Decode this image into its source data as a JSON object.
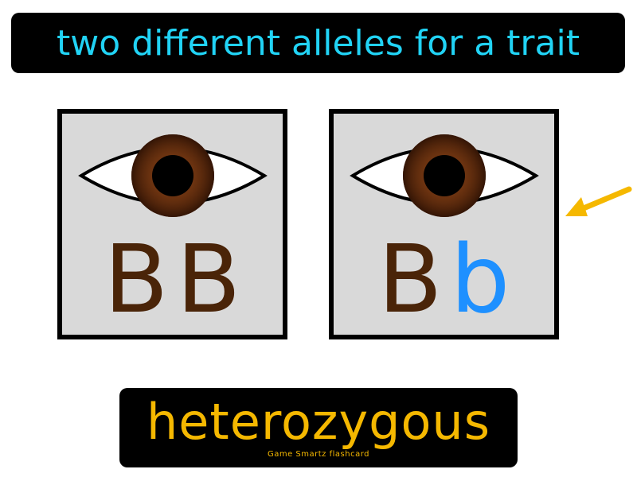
{
  "definition": "two different alleles for a trait",
  "term": "heterozygous",
  "footer": "Game Smartz flashcard",
  "panels": [
    {
      "id": "homozygous",
      "alleles": [
        "B",
        "B"
      ],
      "allele_colors": [
        "#4a2408",
        "#4a2408"
      ]
    },
    {
      "id": "heterozygous",
      "alleles": [
        "B",
        "b"
      ],
      "allele_colors": [
        "#4a2408",
        "#1e90ff"
      ]
    }
  ],
  "icons": {
    "eye": "eye-icon",
    "arrow": "arrow-icon"
  },
  "colors": {
    "definition_text": "#21d3f5",
    "term_text": "#f5b800",
    "iris": "#5a2a0e",
    "arrow": "#f5b800"
  }
}
